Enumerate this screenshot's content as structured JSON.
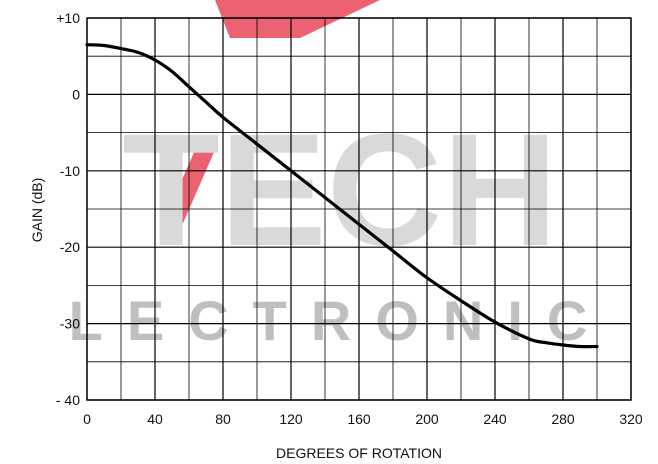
{
  "watermark": {
    "big_text": "TECH",
    "sub_text": "LECTRONIC",
    "big_color": "#d9d9d9",
    "sub_color": "#bfbfbf",
    "accent_color": "#e8475a"
  },
  "chart_data": {
    "type": "line",
    "xlabel": "DEGREES OF ROTATION",
    "ylabel": "GAIN (dB)",
    "xlim": [
      0,
      320
    ],
    "ylim": [
      -40,
      10
    ],
    "x_ticks": [
      0,
      40,
      80,
      120,
      160,
      200,
      240,
      280,
      320
    ],
    "x_tick_labels": [
      "0",
      "40",
      "80",
      "120",
      "160",
      "200",
      "240",
      "280",
      "320"
    ],
    "y_ticks": [
      10,
      0,
      -10,
      -20,
      -30,
      -40
    ],
    "y_tick_labels": [
      "+10",
      "0",
      "-10",
      "-20",
      "-30",
      "- 40"
    ],
    "x_minor_gridlines": [
      20,
      60,
      100,
      140,
      180,
      220,
      260,
      300
    ],
    "y_minor_gridlines": [
      5,
      -5,
      -15,
      -25,
      -35
    ],
    "grid": true,
    "line_color": "#000000",
    "series": [
      {
        "x": [
          0,
          10,
          20,
          30,
          40,
          50,
          60,
          70,
          80,
          100,
          120,
          140,
          160,
          180,
          200,
          220,
          240,
          260,
          270,
          280,
          290,
          300
        ],
        "y": [
          6.5,
          6.4,
          6.0,
          5.5,
          4.5,
          3.0,
          1.0,
          -1.0,
          -3.0,
          -6.5,
          -10.0,
          -13.5,
          -17.0,
          -20.5,
          -24.0,
          -27.0,
          -29.8,
          -32.0,
          -32.5,
          -32.8,
          -33.0,
          -33.0
        ]
      }
    ]
  }
}
